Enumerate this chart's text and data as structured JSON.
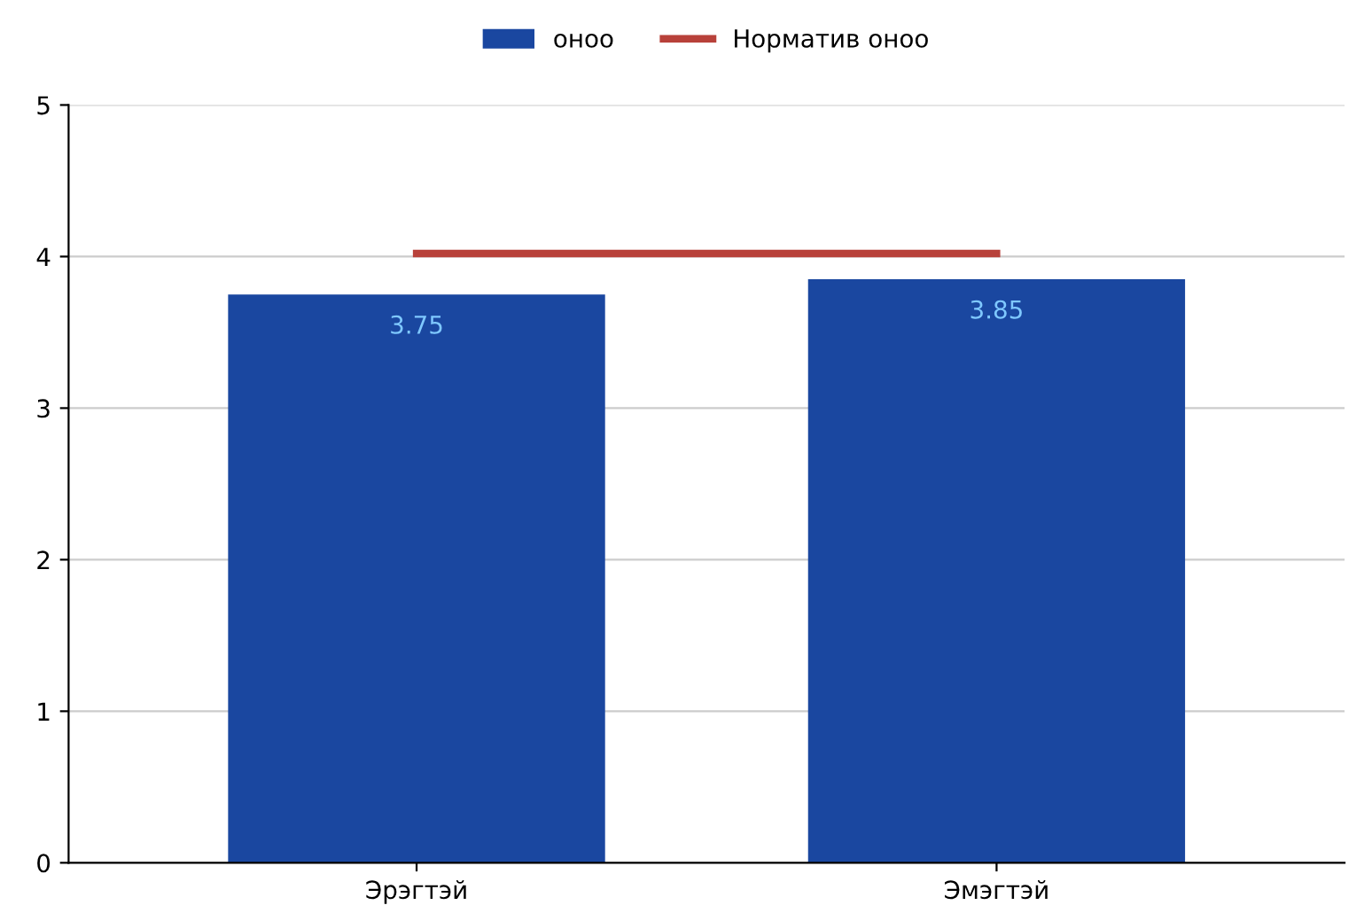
{
  "chart_data": {
    "type": "bar",
    "categories": [
      "Эрэгтэй",
      "Эмэгтэй"
    ],
    "series": [
      {
        "name": "оноо",
        "color": "#1a47a0",
        "values": [
          3.75,
          3.85
        ]
      },
      {
        "name": "Норматив оноо",
        "type": "line",
        "color": "#b8413a",
        "values": [
          4.02,
          4.02
        ]
      }
    ],
    "value_labels": [
      "3.75",
      "3.85"
    ],
    "ylim": [
      0,
      5
    ],
    "yticks": [
      0,
      1,
      2,
      3,
      4,
      5
    ],
    "grid": "y",
    "legend": "top"
  }
}
